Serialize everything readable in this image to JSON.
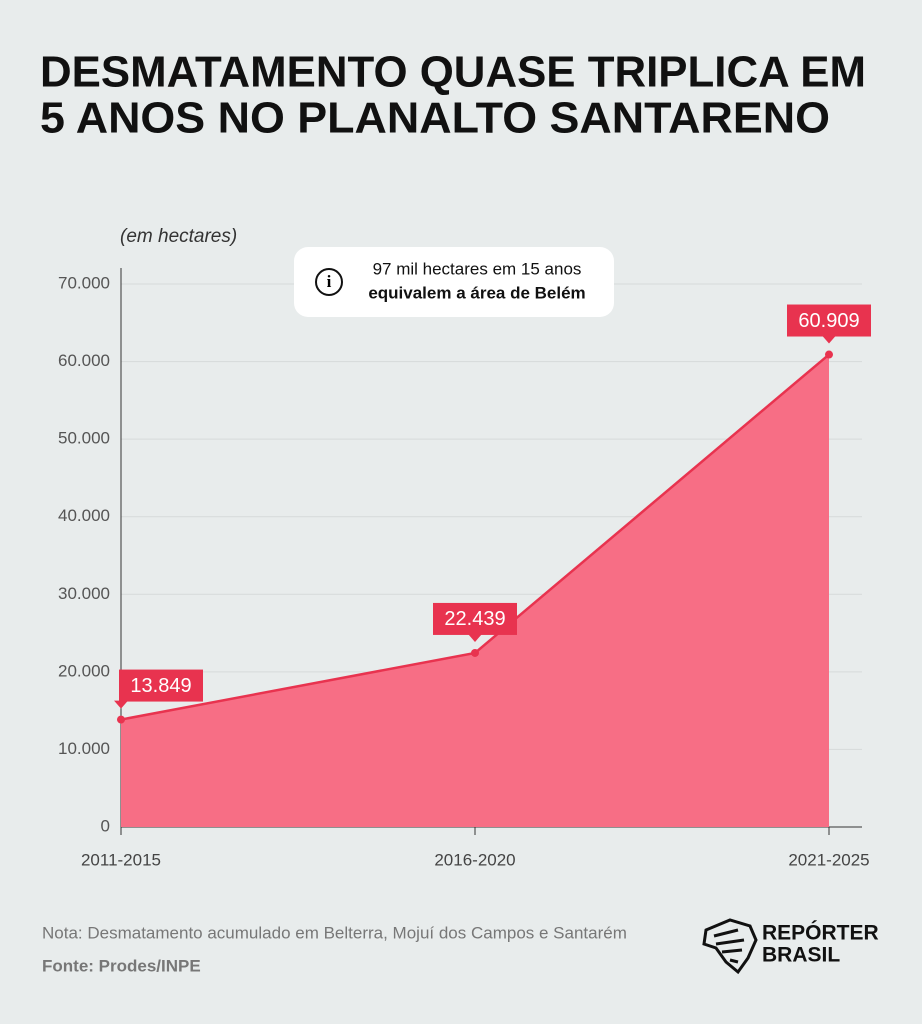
{
  "chart_data": {
    "type": "area",
    "title": [
      "DESMATAMENTO QUASE TRIPLICA EM",
      "5 ANOS NO PLANALTO SANTARENO"
    ],
    "y_label": "(em hectares)",
    "annotation": [
      "97 mil hectares em 15 anos",
      "equivalem a área de Belém"
    ],
    "categories": [
      "2011-2015",
      "2016-2020",
      "2021-2025"
    ],
    "values": [
      13849,
      22439,
      60909
    ],
    "value_labels": [
      "13.849",
      "22.439",
      "60.909"
    ],
    "color": "#f76e85",
    "line_color": "#e8334f",
    "ylim": [
      0,
      70000
    ],
    "yticks": [
      0,
      {
        "value": 10000,
        "label": "10.000"
      },
      {
        "value": 20000,
        "label": "20.000"
      },
      {
        "value": 30000,
        "label": "30.000"
      },
      {
        "value": 40000,
        "label": "40.000"
      },
      {
        "value": 50000,
        "label": "50.000"
      },
      {
        "value": 60000,
        "label": "60.000"
      },
      {
        "value": 70000,
        "label": "70.000"
      }
    ],
    "grid": true
  },
  "note": "Nota: Desmatamento acumulado em Belterra, Mojuí dos Campos e Santarém",
  "source": "Fonte: Prodes/INPE",
  "logo": [
    "REPÓRTER",
    "BRASIL"
  ]
}
